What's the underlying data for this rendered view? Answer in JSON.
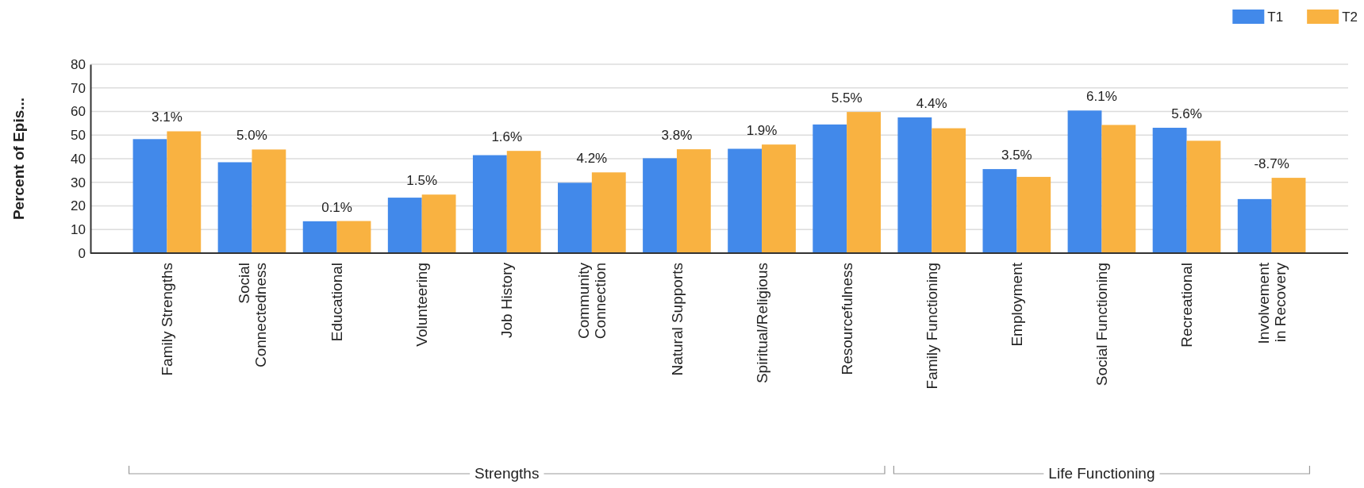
{
  "chart_data": {
    "type": "bar",
    "ylabel": "Percent of Epis...",
    "categories": [
      "Family Strengths",
      "Social\nConnectedness",
      "Educational",
      "Volunteering",
      "Job History",
      "Community\nConnection",
      "Natural Supports",
      "Spiritual/Religious",
      "Resourcefulness",
      "Family Functioning",
      "Employment",
      "Social Functioning",
      "Recreational",
      "Involvement\nin Recovery"
    ],
    "series": [
      {
        "name": "T1",
        "color": "#4289ea",
        "values": [
          48.3,
          38.5,
          13.5,
          23.5,
          41.5,
          29.8,
          40.2,
          44.2,
          54.5,
          57.5,
          35.6,
          60.4,
          53.1,
          22.9
        ]
      },
      {
        "name": "T2",
        "color": "#f9b241",
        "values": [
          51.6,
          43.9,
          13.6,
          24.8,
          43.3,
          34.2,
          44.0,
          46.0,
          59.8,
          52.9,
          32.3,
          54.3,
          47.6,
          31.9
        ]
      }
    ],
    "ylim": [
      0,
      80
    ],
    "yticks": [
      0,
      10,
      20,
      30,
      40,
      50,
      60,
      70,
      80
    ],
    "grid": "y",
    "legend": "top right",
    "annotations": [
      {
        "text": "3.1%",
        "x": "Family Strengths",
        "y": 51.6
      },
      {
        "text": "5.0%",
        "x": "Social\nConnectedness",
        "y": 43.9
      },
      {
        "text": "0.1%",
        "x": "Educational",
        "y": 13.6
      },
      {
        "text": "1.5%",
        "x": "Volunteering",
        "y": 24.8
      },
      {
        "text": "1.6%",
        "x": "Job History",
        "y": 43.3
      },
      {
        "text": "4.2%",
        "x": "Community\nConnection",
        "y": 34.2
      },
      {
        "text": "3.8%",
        "x": "Natural Supports",
        "y": 44.0
      },
      {
        "text": "1.9%",
        "x": "Spiritual/Religious",
        "y": 46.0
      },
      {
        "text": "5.5%",
        "x": "Resourcefulness",
        "y": 59.8
      },
      {
        "text": "4.4%",
        "x": "Family Functioning",
        "y": 57.5
      },
      {
        "text": "3.5%",
        "x": "Employment",
        "y": 35.6
      },
      {
        "text": "6.1%",
        "x": "Social Functioning",
        "y": 60.4
      },
      {
        "text": "5.6%",
        "x": "Recreational",
        "y": 53.1
      },
      {
        "text": "-8.7%",
        "x": "Involvement\nin Recovery",
        "y": 31.9
      },
      "Strengths",
      "Life Functioning"
    ]
  }
}
